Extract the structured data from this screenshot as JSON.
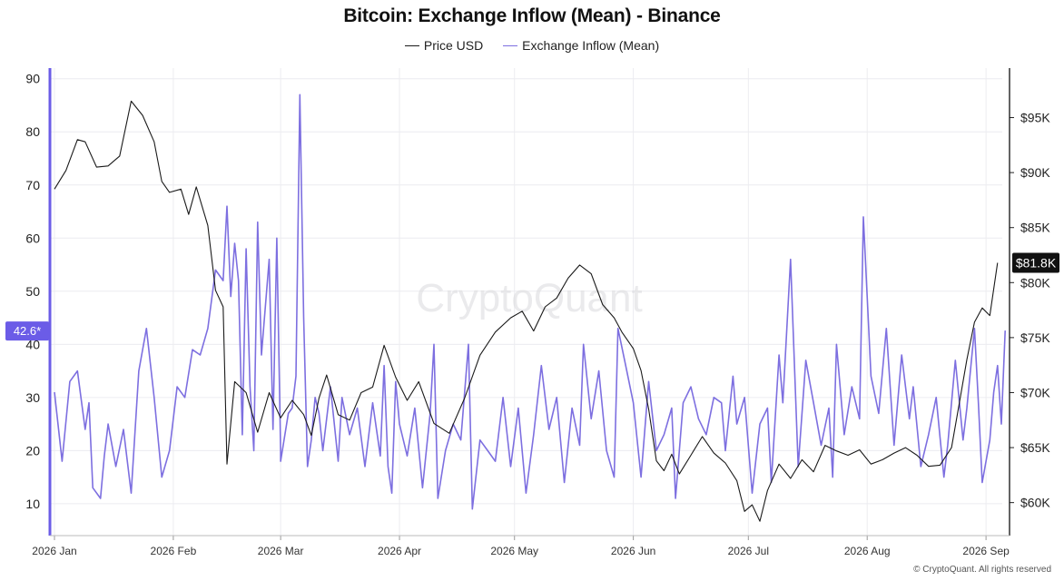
{
  "page": {
    "copyright": "© CryptoQuant. All rights reserved"
  },
  "colors": {
    "price": "#1a1a1a",
    "inflow": "#7d6fe0",
    "grid": "#ececf0",
    "badge_price": "#111111",
    "badge_inflow": "#6b5ce7"
  },
  "chart_data": {
    "type": "line",
    "title": "Bitcoin: Exchange Inflow (Mean) - Binance",
    "watermark": "CryptoQuant",
    "legend_position": "top-center",
    "grid": true,
    "x": {
      "range": [
        "2026-01-01",
        "2026-09-05"
      ],
      "ticks": [
        {
          "date": "2026-01-01",
          "label": "2026 Jan"
        },
        {
          "date": "2026-02-01",
          "label": "2026 Feb"
        },
        {
          "date": "2026-03-01",
          "label": "2026 Mar"
        },
        {
          "date": "2026-04-01",
          "label": "2026 Apr"
        },
        {
          "date": "2026-05-01",
          "label": "2026 May"
        },
        {
          "date": "2026-06-01",
          "label": "2026 Jun"
        },
        {
          "date": "2026-07-01",
          "label": "2026 Jul"
        },
        {
          "date": "2026-08-01",
          "label": "2026 Aug"
        },
        {
          "date": "2026-09-01",
          "label": "2026 Sep"
        }
      ]
    },
    "y_left": {
      "range": [
        4,
        92
      ],
      "ticks": [
        10,
        20,
        30,
        40,
        50,
        60,
        70,
        80,
        90
      ],
      "tick_labels": [
        "10",
        "20",
        "30",
        "40",
        "50",
        "60",
        "70",
        "80",
        "90"
      ]
    },
    "y_right": {
      "range": [
        57000,
        99500
      ],
      "ticks": [
        60000,
        65000,
        70000,
        75000,
        80000,
        85000,
        90000,
        95000
      ],
      "tick_labels": [
        "$60K",
        "$65K",
        "$70K",
        "$75K",
        "$80K",
        "$85K",
        "$90K",
        "$95K"
      ]
    },
    "series": [
      {
        "name": "Price USD",
        "axis": "right",
        "color": "#1a1a1a",
        "last_value_label": "$81.8K",
        "points": [
          [
            "2026-01-01",
            88500
          ],
          [
            "2026-01-04",
            90200
          ],
          [
            "2026-01-07",
            93000
          ],
          [
            "2026-01-09",
            92800
          ],
          [
            "2026-01-12",
            90500
          ],
          [
            "2026-01-15",
            90600
          ],
          [
            "2026-01-18",
            91500
          ],
          [
            "2026-01-21",
            96500
          ],
          [
            "2026-01-24",
            95200
          ],
          [
            "2026-01-27",
            92800
          ],
          [
            "2026-01-29",
            89200
          ],
          [
            "2026-01-31",
            88200
          ],
          [
            "2026-02-03",
            88500
          ],
          [
            "2026-02-05",
            86200
          ],
          [
            "2026-02-07",
            88700
          ],
          [
            "2026-02-10",
            85200
          ],
          [
            "2026-02-12",
            79300
          ],
          [
            "2026-02-14",
            77800
          ],
          [
            "2026-02-15",
            63500
          ],
          [
            "2026-02-17",
            71000
          ],
          [
            "2026-02-20",
            70000
          ],
          [
            "2026-02-23",
            66400
          ],
          [
            "2026-02-26",
            70000
          ],
          [
            "2026-03-01",
            67700
          ],
          [
            "2026-03-04",
            69300
          ],
          [
            "2026-03-07",
            68000
          ],
          [
            "2026-03-09",
            66100
          ],
          [
            "2026-03-11",
            69500
          ],
          [
            "2026-03-13",
            71600
          ],
          [
            "2026-03-16",
            68000
          ],
          [
            "2026-03-19",
            67500
          ],
          [
            "2026-03-22",
            70000
          ],
          [
            "2026-03-25",
            70500
          ],
          [
            "2026-03-28",
            74300
          ],
          [
            "2026-03-31",
            71400
          ],
          [
            "2026-04-03",
            69300
          ],
          [
            "2026-04-06",
            71000
          ],
          [
            "2026-04-10",
            67200
          ],
          [
            "2026-04-14",
            66300
          ],
          [
            "2026-04-18",
            69500
          ],
          [
            "2026-04-22",
            73400
          ],
          [
            "2026-04-26",
            75500
          ],
          [
            "2026-04-30",
            76800
          ],
          [
            "2026-05-03",
            77400
          ],
          [
            "2026-05-06",
            75600
          ],
          [
            "2026-05-09",
            77800
          ],
          [
            "2026-05-12",
            78600
          ],
          [
            "2026-05-15",
            80400
          ],
          [
            "2026-05-18",
            81600
          ],
          [
            "2026-05-21",
            80800
          ],
          [
            "2026-05-24",
            78000
          ],
          [
            "2026-05-27",
            76800
          ],
          [
            "2026-05-29",
            75500
          ],
          [
            "2026-06-01",
            74000
          ],
          [
            "2026-06-03",
            72000
          ],
          [
            "2026-06-05",
            68500
          ],
          [
            "2026-06-07",
            63800
          ],
          [
            "2026-06-09",
            62900
          ],
          [
            "2026-06-11",
            64400
          ],
          [
            "2026-06-13",
            62600
          ],
          [
            "2026-06-16",
            64300
          ],
          [
            "2026-06-19",
            66000
          ],
          [
            "2026-06-22",
            64500
          ],
          [
            "2026-06-25",
            63600
          ],
          [
            "2026-06-28",
            62000
          ],
          [
            "2026-06-30",
            59200
          ],
          [
            "2026-07-02",
            59800
          ],
          [
            "2026-07-04",
            58300
          ],
          [
            "2026-07-06",
            61100
          ],
          [
            "2026-07-09",
            63500
          ],
          [
            "2026-07-12",
            62200
          ],
          [
            "2026-07-15",
            63900
          ],
          [
            "2026-07-18",
            62800
          ],
          [
            "2026-07-21",
            65200
          ],
          [
            "2026-07-24",
            64700
          ],
          [
            "2026-07-27",
            64300
          ],
          [
            "2026-07-30",
            64800
          ],
          [
            "2026-08-02",
            63500
          ],
          [
            "2026-08-05",
            63900
          ],
          [
            "2026-08-08",
            64500
          ],
          [
            "2026-08-11",
            65000
          ],
          [
            "2026-08-14",
            64300
          ],
          [
            "2026-08-17",
            63300
          ],
          [
            "2026-08-20",
            63400
          ],
          [
            "2026-08-23",
            65000
          ],
          [
            "2026-08-25",
            69000
          ],
          [
            "2026-08-27",
            73000
          ],
          [
            "2026-08-29",
            76400
          ],
          [
            "2026-08-31",
            77700
          ],
          [
            "2026-09-02",
            77000
          ],
          [
            "2026-09-04",
            81800
          ]
        ]
      },
      {
        "name": "Exchange Inflow (Mean)",
        "axis": "left",
        "color": "#7d6fe0",
        "last_value_label": "42.6*",
        "points": [
          [
            "2026-01-01",
            31
          ],
          [
            "2026-01-03",
            18
          ],
          [
            "2026-01-05",
            33
          ],
          [
            "2026-01-07",
            35
          ],
          [
            "2026-01-09",
            24
          ],
          [
            "2026-01-10",
            29
          ],
          [
            "2026-01-11",
            13
          ],
          [
            "2026-01-13",
            11
          ],
          [
            "2026-01-14",
            19
          ],
          [
            "2026-01-15",
            25
          ],
          [
            "2026-01-17",
            17
          ],
          [
            "2026-01-19",
            24
          ],
          [
            "2026-01-21",
            12
          ],
          [
            "2026-01-23",
            35
          ],
          [
            "2026-01-25",
            43
          ],
          [
            "2026-01-27",
            30
          ],
          [
            "2026-01-29",
            15
          ],
          [
            "2026-01-31",
            20
          ],
          [
            "2026-02-02",
            32
          ],
          [
            "2026-02-04",
            30
          ],
          [
            "2026-02-06",
            39
          ],
          [
            "2026-02-08",
            38
          ],
          [
            "2026-02-10",
            43
          ],
          [
            "2026-02-12",
            54
          ],
          [
            "2026-02-14",
            52
          ],
          [
            "2026-02-15",
            66
          ],
          [
            "2026-02-16",
            49
          ],
          [
            "2026-02-17",
            59
          ],
          [
            "2026-02-18",
            52
          ],
          [
            "2026-02-19",
            23
          ],
          [
            "2026-02-20",
            58
          ],
          [
            "2026-02-21",
            32
          ],
          [
            "2026-02-22",
            20
          ],
          [
            "2026-02-23",
            63
          ],
          [
            "2026-02-24",
            38
          ],
          [
            "2026-02-26",
            56
          ],
          [
            "2026-02-27",
            24
          ],
          [
            "2026-02-28",
            60
          ],
          [
            "2026-02-29",
            20
          ],
          [
            "2026-03-01",
            18
          ],
          [
            "2026-03-03",
            27
          ],
          [
            "2026-03-04",
            28
          ],
          [
            "2026-03-05",
            34
          ],
          [
            "2026-03-06",
            87
          ],
          [
            "2026-03-07",
            45
          ],
          [
            "2026-03-08",
            17
          ],
          [
            "2026-03-09",
            22
          ],
          [
            "2026-03-10",
            30
          ],
          [
            "2026-03-11",
            27
          ],
          [
            "2026-03-12",
            20
          ],
          [
            "2026-03-14",
            32
          ],
          [
            "2026-03-16",
            18
          ],
          [
            "2026-03-17",
            30
          ],
          [
            "2026-03-19",
            23
          ],
          [
            "2026-03-21",
            28
          ],
          [
            "2026-03-23",
            17
          ],
          [
            "2026-03-25",
            29
          ],
          [
            "2026-03-27",
            19
          ],
          [
            "2026-03-28",
            36
          ],
          [
            "2026-03-29",
            17
          ],
          [
            "2026-03-30",
            12
          ],
          [
            "2026-03-31",
            33
          ],
          [
            "2026-04-01",
            25
          ],
          [
            "2026-04-03",
            19
          ],
          [
            "2026-04-05",
            28
          ],
          [
            "2026-04-07",
            13
          ],
          [
            "2026-04-09",
            27
          ],
          [
            "2026-04-10",
            40
          ],
          [
            "2026-04-11",
            11
          ],
          [
            "2026-04-13",
            20
          ],
          [
            "2026-04-15",
            25
          ],
          [
            "2026-04-17",
            22
          ],
          [
            "2026-04-19",
            40
          ],
          [
            "2026-04-20",
            9
          ],
          [
            "2026-04-22",
            22
          ],
          [
            "2026-04-24",
            20
          ],
          [
            "2026-04-26",
            18
          ],
          [
            "2026-04-28",
            30
          ],
          [
            "2026-04-30",
            17
          ],
          [
            "2026-05-02",
            28
          ],
          [
            "2026-05-04",
            12
          ],
          [
            "2026-05-06",
            23
          ],
          [
            "2026-05-08",
            36
          ],
          [
            "2026-05-10",
            24
          ],
          [
            "2026-05-12",
            30
          ],
          [
            "2026-05-14",
            14
          ],
          [
            "2026-05-16",
            28
          ],
          [
            "2026-05-18",
            21
          ],
          [
            "2026-05-19",
            40
          ],
          [
            "2026-05-21",
            26
          ],
          [
            "2026-05-23",
            35
          ],
          [
            "2026-05-25",
            20
          ],
          [
            "2026-05-27",
            15
          ],
          [
            "2026-05-28",
            43
          ],
          [
            "2026-05-30",
            36
          ],
          [
            "2026-06-01",
            29
          ],
          [
            "2026-06-03",
            15
          ],
          [
            "2026-06-05",
            33
          ],
          [
            "2026-06-07",
            20
          ],
          [
            "2026-06-09",
            23
          ],
          [
            "2026-06-11",
            28
          ],
          [
            "2026-06-12",
            11
          ],
          [
            "2026-06-14",
            29
          ],
          [
            "2026-06-16",
            32
          ],
          [
            "2026-06-18",
            26
          ],
          [
            "2026-06-20",
            23
          ],
          [
            "2026-06-22",
            30
          ],
          [
            "2026-06-24",
            29
          ],
          [
            "2026-06-25",
            20
          ],
          [
            "2026-06-27",
            34
          ],
          [
            "2026-06-28",
            25
          ],
          [
            "2026-06-30",
            30
          ],
          [
            "2026-07-02",
            12
          ],
          [
            "2026-07-04",
            25
          ],
          [
            "2026-07-06",
            28
          ],
          [
            "2026-07-07",
            14
          ],
          [
            "2026-07-09",
            38
          ],
          [
            "2026-07-10",
            29
          ],
          [
            "2026-07-12",
            56
          ],
          [
            "2026-07-14",
            17
          ],
          [
            "2026-07-16",
            37
          ],
          [
            "2026-07-18",
            29
          ],
          [
            "2026-07-20",
            21
          ],
          [
            "2026-07-22",
            28
          ],
          [
            "2026-07-23",
            15
          ],
          [
            "2026-07-24",
            40
          ],
          [
            "2026-07-26",
            23
          ],
          [
            "2026-07-28",
            32
          ],
          [
            "2026-07-30",
            26
          ],
          [
            "2026-07-31",
            64
          ],
          [
            "2026-08-02",
            34
          ],
          [
            "2026-08-04",
            27
          ],
          [
            "2026-08-06",
            43
          ],
          [
            "2026-08-08",
            21
          ],
          [
            "2026-08-10",
            38
          ],
          [
            "2026-08-12",
            26
          ],
          [
            "2026-08-13",
            32
          ],
          [
            "2026-08-15",
            17
          ],
          [
            "2026-08-17",
            23
          ],
          [
            "2026-08-19",
            30
          ],
          [
            "2026-08-21",
            15
          ],
          [
            "2026-08-22",
            21
          ],
          [
            "2026-08-24",
            37
          ],
          [
            "2026-08-26",
            22
          ],
          [
            "2026-08-27",
            28
          ],
          [
            "2026-08-29",
            43
          ],
          [
            "2026-08-30",
            29
          ],
          [
            "2026-08-31",
            14
          ],
          [
            "2026-09-02",
            22
          ],
          [
            "2026-09-03",
            31
          ],
          [
            "2026-09-04",
            36
          ],
          [
            "2026-09-05",
            25
          ],
          [
            "2026-09-06",
            42.6
          ]
        ]
      }
    ]
  }
}
